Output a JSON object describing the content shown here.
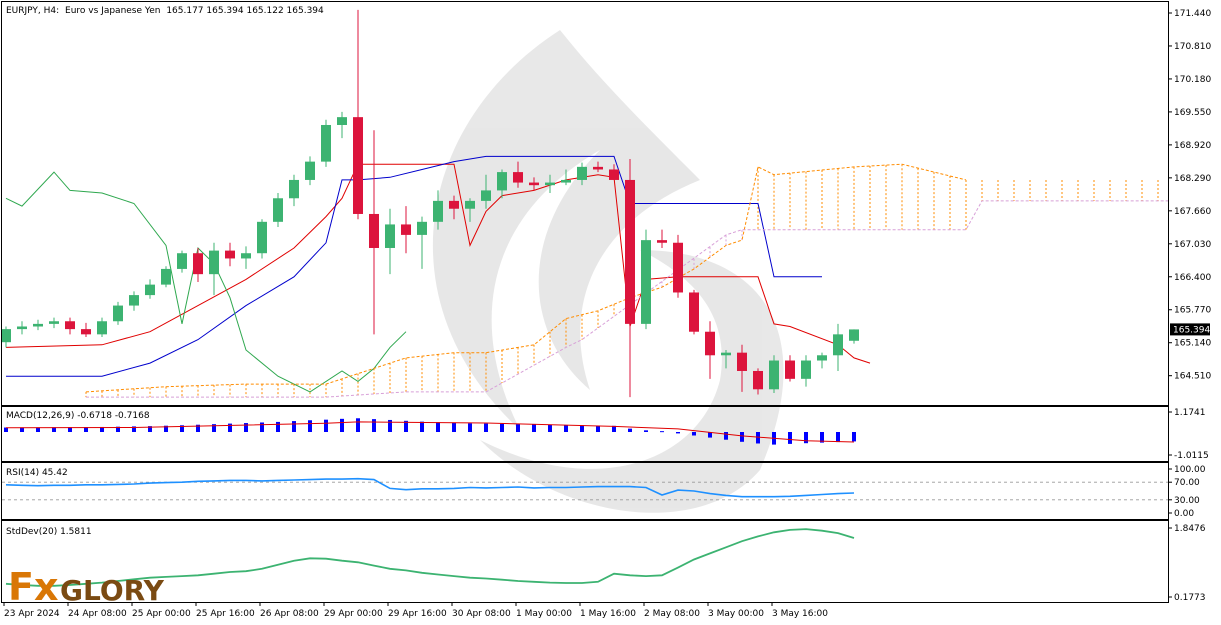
{
  "header": {
    "symbol": "EURJPY, H4:",
    "description": "Euro vs Japanese Yen",
    "ohlc": "165.177 165.394 165.122 165.394"
  },
  "colors": {
    "bull": "#3cb371",
    "bear": "#dc143c",
    "tenkan": "#e00000",
    "kijun": "#0000cc",
    "chikou": "#2fa84f",
    "senkou_a": "#ff8c00",
    "senkou_b": "#d8a0d8",
    "macd_hist": "#0000ff",
    "macd_signal": "#e00000",
    "rsi": "#1e90ff",
    "stddev": "#3cb371",
    "frame": "#000000"
  },
  "chart_data": [
    {
      "type": "candlestick",
      "panel": "main",
      "title": "EURJPY, H4: Euro vs Japanese Yen",
      "current_price": "165.394",
      "ylim": [
        163.95,
        171.65
      ],
      "y_ticks": [
        "171.440",
        "170.810",
        "170.180",
        "169.550",
        "168.920",
        "168.290",
        "167.660",
        "167.030",
        "166.400",
        "165.770",
        "165.140",
        "164.510"
      ],
      "x_ticks": [
        "23 Apr 2024",
        "24 Apr 08:00",
        "25 Apr 00:00",
        "25 Apr 16:00",
        "26 Apr 08:00",
        "29 Apr 00:00",
        "29 Apr 16:00",
        "30 Apr 08:00",
        "1 May 00:00",
        "1 May 16:00",
        "2 May 08:00",
        "3 May 00:00",
        "3 May 16:00"
      ],
      "candles": [
        [
          165.15,
          165.45,
          165.05,
          165.4
        ],
        [
          165.4,
          165.55,
          165.3,
          165.45
        ],
        [
          165.45,
          165.58,
          165.38,
          165.5
        ],
        [
          165.5,
          165.62,
          165.42,
          165.55
        ],
        [
          165.55,
          165.62,
          165.3,
          165.4
        ],
        [
          165.4,
          165.52,
          165.25,
          165.3
        ],
        [
          165.3,
          165.62,
          165.25,
          165.55
        ],
        [
          165.55,
          165.92,
          165.48,
          165.85
        ],
        [
          165.85,
          166.12,
          165.75,
          166.05
        ],
        [
          166.05,
          166.35,
          165.98,
          166.25
        ],
        [
          166.25,
          166.6,
          166.2,
          166.55
        ],
        [
          166.55,
          166.9,
          166.48,
          166.85
        ],
        [
          166.85,
          166.95,
          166.3,
          166.45
        ],
        [
          166.45,
          167.05,
          166.05,
          166.9
        ],
        [
          166.9,
          167.05,
          166.6,
          166.75
        ],
        [
          166.75,
          166.98,
          166.55,
          166.85
        ],
        [
          166.85,
          167.5,
          166.75,
          167.45
        ],
        [
          167.45,
          168.0,
          167.35,
          167.9
        ],
        [
          167.9,
          168.35,
          167.75,
          168.25
        ],
        [
          168.25,
          168.7,
          168.15,
          168.6
        ],
        [
          168.6,
          169.4,
          168.5,
          169.3
        ],
        [
          169.3,
          169.55,
          169.05,
          169.45
        ],
        [
          169.45,
          171.5,
          167.5,
          167.6
        ],
        [
          167.6,
          169.2,
          165.3,
          166.95
        ],
        [
          166.95,
          167.7,
          166.45,
          167.4
        ],
        [
          167.4,
          167.75,
          166.85,
          167.2
        ],
        [
          167.2,
          167.55,
          166.55,
          167.45
        ],
        [
          167.45,
          168.05,
          167.3,
          167.85
        ],
        [
          167.85,
          167.95,
          167.5,
          167.7
        ],
        [
          167.7,
          167.9,
          167.45,
          167.85
        ],
        [
          167.85,
          168.35,
          167.7,
          168.05
        ],
        [
          168.05,
          168.45,
          167.9,
          168.4
        ],
        [
          168.4,
          168.6,
          168.1,
          168.2
        ],
        [
          168.2,
          168.3,
          168.05,
          168.15
        ],
        [
          168.15,
          168.35,
          168.0,
          168.2
        ],
        [
          168.2,
          168.45,
          168.15,
          168.25
        ],
        [
          168.25,
          168.58,
          168.15,
          168.5
        ],
        [
          168.5,
          168.6,
          168.4,
          168.45
        ],
        [
          168.45,
          168.55,
          168.25,
          168.25
        ],
        [
          168.25,
          168.65,
          164.1,
          165.5
        ],
        [
          165.5,
          167.3,
          165.4,
          167.1
        ],
        [
          167.1,
          167.3,
          166.95,
          167.05
        ],
        [
          167.05,
          167.2,
          166.0,
          166.1
        ],
        [
          166.1,
          166.15,
          165.3,
          165.35
        ],
        [
          165.35,
          165.55,
          164.45,
          164.9
        ],
        [
          164.9,
          165.0,
          164.65,
          164.95
        ],
        [
          164.95,
          165.1,
          164.2,
          164.6
        ],
        [
          164.6,
          164.65,
          164.15,
          164.25
        ],
        [
          164.25,
          164.9,
          164.18,
          164.8
        ],
        [
          164.8,
          164.9,
          164.4,
          164.45
        ],
        [
          164.45,
          164.9,
          164.3,
          164.8
        ],
        [
          164.8,
          164.95,
          164.65,
          164.9
        ],
        [
          164.9,
          165.5,
          164.6,
          165.3
        ],
        [
          165.177,
          165.394,
          165.122,
          165.394
        ]
      ],
      "series": [
        {
          "kind": "tenkan",
          "x": [
            0,
            6,
            9,
            12,
            15,
            18,
            20,
            21,
            22,
            28,
            29,
            30,
            31,
            33,
            35,
            37,
            38,
            39,
            40,
            42,
            43,
            44,
            47,
            48,
            49,
            52,
            53,
            54
          ],
          "y": [
            165.05,
            165.1,
            165.35,
            165.85,
            166.35,
            166.95,
            167.55,
            167.9,
            168.55,
            168.55,
            167.0,
            167.65,
            167.95,
            168.05,
            168.25,
            168.35,
            168.3,
            165.45,
            166.35,
            166.4,
            166.4,
            166.4,
            166.4,
            165.5,
            165.45,
            165.1,
            164.85,
            164.75
          ]
        },
        {
          "kind": "kijun",
          "x": [
            0,
            6,
            9,
            12,
            15,
            18,
            20,
            21,
            22,
            24,
            26,
            28,
            30,
            32,
            34,
            38,
            39,
            45,
            47,
            48,
            51
          ],
          "y": [
            164.5,
            164.5,
            164.75,
            165.2,
            165.85,
            166.4,
            167.05,
            168.25,
            168.25,
            168.3,
            168.45,
            168.6,
            168.7,
            168.7,
            168.7,
            168.7,
            167.8,
            167.8,
            167.8,
            166.4,
            166.4
          ]
        },
        {
          "kind": "chikou",
          "x": [
            0,
            1,
            3,
            4,
            6,
            8,
            10,
            11,
            12,
            13,
            14,
            15,
            17,
            19,
            21,
            22,
            23,
            24,
            25
          ],
          "y": [
            167.9,
            167.75,
            168.4,
            168.05,
            168.0,
            167.8,
            167.0,
            165.5,
            166.95,
            166.65,
            166.0,
            165.0,
            164.5,
            164.2,
            164.6,
            164.4,
            164.65,
            165.05,
            165.35
          ]
        },
        {
          "kind": "senkou_a",
          "x": [
            5,
            10,
            15,
            20,
            23,
            25,
            28,
            30,
            33,
            35,
            37,
            39,
            41,
            43,
            45,
            46,
            47,
            48,
            53,
            56,
            60
          ],
          "y": [
            164.2,
            164.3,
            164.35,
            164.35,
            164.65,
            164.85,
            164.95,
            164.95,
            165.1,
            165.6,
            165.75,
            166.0,
            166.2,
            166.55,
            167.0,
            167.1,
            168.5,
            168.35,
            168.5,
            168.55,
            168.25
          ]
        },
        {
          "kind": "senkou_b",
          "x": [
            5,
            20,
            25,
            30,
            35,
            36,
            45,
            46,
            47,
            55,
            60,
            61,
            73
          ],
          "y": [
            164.1,
            164.1,
            164.2,
            164.2,
            165.05,
            165.2,
            167.2,
            167.3,
            167.3,
            167.3,
            167.3,
            167.85,
            167.85
          ]
        }
      ]
    },
    {
      "type": "bar",
      "panel": "macd",
      "title": "MACD(12,26,9) -0.6718 -0.7168",
      "y_ticks": [
        "1.1741",
        "-1.0115"
      ],
      "ylim": [
        -1.25,
        1.25
      ],
      "histogram": [
        0.32,
        0.33,
        0.33,
        0.34,
        0.34,
        0.35,
        0.36,
        0.38,
        0.4,
        0.42,
        0.45,
        0.48,
        0.52,
        0.56,
        0.6,
        0.64,
        0.68,
        0.72,
        0.78,
        0.84,
        0.88,
        0.94,
        0.98,
        0.92,
        0.86,
        0.8,
        0.74,
        0.7,
        0.66,
        0.62,
        0.6,
        0.58,
        0.56,
        0.54,
        0.52,
        0.5,
        0.48,
        0.46,
        0.44,
        0.24,
        0.12,
        0.06,
        -0.1,
        -0.25,
        -0.4,
        -0.55,
        -0.7,
        -0.82,
        -0.9,
        -0.85,
        -0.8,
        -0.76,
        -0.72,
        -0.6718
      ],
      "signal_x": [
        0,
        8,
        20,
        22,
        30,
        38,
        42,
        46,
        50,
        53
      ],
      "signal_y": [
        0.3,
        0.32,
        0.62,
        0.72,
        0.64,
        0.4,
        0.22,
        -0.28,
        -0.62,
        -0.7168
      ]
    },
    {
      "type": "line",
      "panel": "rsi",
      "title": "RSI(14) 45.42",
      "y_ticks": [
        "100.00",
        "70.00",
        "30.00",
        "0.00"
      ],
      "levels": [
        70,
        30
      ],
      "ylim": [
        0,
        100
      ],
      "values": [
        64,
        63,
        62,
        63,
        63,
        64,
        64,
        65,
        66,
        68,
        69,
        70,
        72,
        73,
        74,
        74,
        73,
        74,
        75,
        76,
        77,
        77,
        78,
        76,
        56,
        53,
        55,
        55,
        56,
        58,
        57,
        58,
        59,
        57,
        58,
        58,
        59,
        60,
        60,
        60,
        58,
        41,
        52,
        50,
        44,
        40,
        37,
        37,
        37,
        38,
        40,
        42,
        44,
        45.42
      ]
    },
    {
      "type": "line",
      "panel": "stddev",
      "title": "StdDev(20) 1.5811",
      "y_ticks": [
        "1.8476",
        "0.1773"
      ],
      "ylim": [
        0.05,
        1.95
      ],
      "values": [
        0.45,
        0.42,
        0.4,
        0.4,
        0.42,
        0.45,
        0.48,
        0.52,
        0.56,
        0.6,
        0.62,
        0.64,
        0.66,
        0.7,
        0.74,
        0.76,
        0.82,
        0.92,
        1.02,
        1.08,
        1.07,
        1.02,
        0.98,
        0.9,
        0.82,
        0.78,
        0.72,
        0.68,
        0.64,
        0.6,
        0.58,
        0.55,
        0.52,
        0.5,
        0.48,
        0.47,
        0.47,
        0.5,
        0.7,
        0.66,
        0.64,
        0.66,
        0.85,
        1.05,
        1.2,
        1.35,
        1.5,
        1.62,
        1.72,
        1.78,
        1.8,
        1.76,
        1.7,
        1.5811
      ]
    }
  ],
  "watermark": {
    "logo_text_1": "Fx",
    "logo_text_2": "GLORY"
  }
}
